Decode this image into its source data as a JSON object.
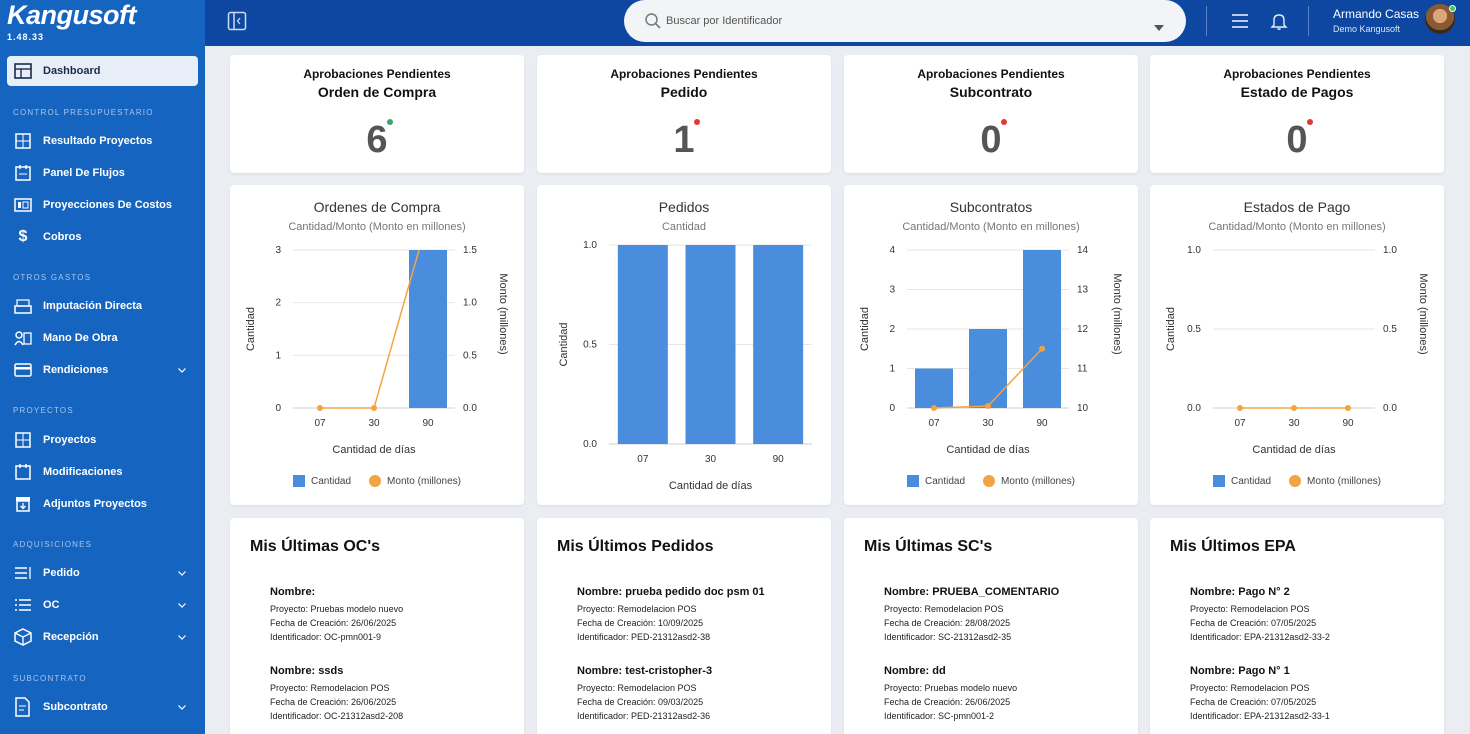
{
  "app": {
    "logo": "Kangusoft",
    "version": "1.48.33"
  },
  "sidebar": {
    "dashboard": "Dashboard",
    "sections": {
      "control": "CONTROL PRESUPUESTARIO",
      "otros": "OTROS GASTOS",
      "proyectos": "PROYECTOS",
      "adquisiciones": "ADQUISICIONES",
      "subcontrato": "SUBCONTRATO"
    },
    "items": {
      "resultado": "Resultado Proyectos",
      "flujos": "Panel De Flujos",
      "proyecciones": "Proyecciones De Costos",
      "cobros": "Cobros",
      "imputacion": "Imputación Directa",
      "mano": "Mano De Obra",
      "rendiciones": "Rendiciones",
      "proyectos": "Proyectos",
      "modificaciones": "Modificaciones",
      "adjuntos": "Adjuntos Proyectos",
      "pedido": "Pedido",
      "oc": "OC",
      "recepcion": "Recepción",
      "subcontrato": "Subcontrato"
    }
  },
  "header": {
    "search_placeholder": "Buscar por Identificador",
    "user_name": "Armando Casas",
    "user_company": "Demo Kangusoft"
  },
  "kpis": [
    {
      "sub": "Aprobaciones Pendientes",
      "title": "Orden de Compra",
      "value": "6",
      "dot": "#3aa56b"
    },
    {
      "sub": "Aprobaciones Pendientes",
      "title": "Pedido",
      "value": "1",
      "dot": "#e03b30"
    },
    {
      "sub": "Aprobaciones Pendientes",
      "title": "Subcontrato",
      "value": "0",
      "dot": "#e03b30"
    },
    {
      "sub": "Aprobaciones Pendientes",
      "title": "Estado de Pagos",
      "value": "0",
      "dot": "#e03b30"
    }
  ],
  "charts": [
    {
      "title": "Ordenes de Compra",
      "subtitle": "Cantidad/Monto (Monto en millones)",
      "xlabel": "Cantidad de días",
      "ylabel": "Cantidad",
      "y2label": "Monto (millones)",
      "legend_bar": "Cantidad",
      "legend_line": "Monto (millones)"
    },
    {
      "title": "Pedidos",
      "subtitle": "Cantidad",
      "xlabel": "Cantidad de días",
      "ylabel": "Cantidad"
    },
    {
      "title": "Subcontratos",
      "subtitle": "Cantidad/Monto (Monto en millones)",
      "xlabel": "Cantidad de días",
      "ylabel": "Cantidad",
      "y2label": "Monto (millones)",
      "legend_bar": "Cantidad",
      "legend_line": "Monto (millones)"
    },
    {
      "title": "Estados de Pago",
      "subtitle": "Cantidad/Monto (Monto en millones)",
      "xlabel": "Cantidad de días",
      "ylabel": "Cantidad",
      "y2label": "Monto (millones)",
      "legend_bar": "Cantidad",
      "legend_line": "Monto (millones)"
    }
  ],
  "chart_data": [
    {
      "type": "bar",
      "title": "Ordenes de Compra",
      "categories": [
        "07",
        "30",
        "90"
      ],
      "series": [
        {
          "name": "Cantidad",
          "type": "bar",
          "values": [
            0,
            0,
            3
          ]
        },
        {
          "name": "Monto (millones)",
          "type": "line",
          "values": [
            0,
            0,
            1.8
          ]
        }
      ],
      "ylim": [
        0,
        3
      ],
      "yticks": [
        "0",
        "1",
        "2",
        "3"
      ],
      "y2lim": [
        0,
        1.5
      ],
      "y2ticks": [
        "0.0",
        "0.5",
        "1.0",
        "1.5"
      ],
      "xlabel": "Cantidad de días",
      "ylabel": "Cantidad",
      "y2label": "Monto (millones)"
    },
    {
      "type": "bar",
      "title": "Pedidos",
      "categories": [
        "07",
        "30",
        "90"
      ],
      "series": [
        {
          "name": "Cantidad",
          "type": "bar",
          "values": [
            1,
            1,
            1
          ]
        }
      ],
      "ylim": [
        0,
        1
      ],
      "yticks": [
        "0.0",
        "0.5",
        "1.0"
      ],
      "xlabel": "Cantidad de días",
      "ylabel": "Cantidad"
    },
    {
      "type": "bar",
      "title": "Subcontratos",
      "categories": [
        "07",
        "30",
        "90"
      ],
      "series": [
        {
          "name": "Cantidad",
          "type": "bar",
          "values": [
            1,
            2,
            4
          ]
        },
        {
          "name": "Monto (millones)",
          "type": "line",
          "values": [
            10,
            10.05,
            11.5
          ]
        }
      ],
      "ylim": [
        0,
        4
      ],
      "yticks": [
        "0",
        "1",
        "2",
        "3",
        "4"
      ],
      "y2lim": [
        10,
        14
      ],
      "y2ticks": [
        "10",
        "11",
        "12",
        "13",
        "14"
      ],
      "xlabel": "Cantidad de días",
      "ylabel": "Cantidad",
      "y2label": "Monto (millones)"
    },
    {
      "type": "bar",
      "title": "Estados de Pago",
      "categories": [
        "07",
        "30",
        "90"
      ],
      "series": [
        {
          "name": "Cantidad",
          "type": "bar",
          "values": [
            0,
            0,
            0
          ]
        },
        {
          "name": "Monto (millones)",
          "type": "line",
          "values": [
            0,
            0,
            0
          ]
        }
      ],
      "ylim": [
        0,
        1
      ],
      "yticks": [
        "0.0",
        "0.5",
        "1.0"
      ],
      "y2lim": [
        0,
        1
      ],
      "y2ticks": [
        "0.0",
        "0.5",
        "1.0"
      ],
      "xlabel": "Cantidad de días",
      "ylabel": "Cantidad",
      "y2label": "Monto (millones)"
    }
  ],
  "lists": [
    {
      "title": "Mis Últimas OC's",
      "entries": [
        {
          "name": "Nombre:",
          "proyecto": "Proyecto: Pruebas modelo nuevo",
          "fecha": "Fecha de Creación: 26/06/2025",
          "id": "Identificador: OC-pmn001-9"
        },
        {
          "name": "Nombre: ssds",
          "proyecto": "Proyecto: Remodelacion POS",
          "fecha": "Fecha de Creación: 26/06/2025",
          "id": "Identificador: OC-21312asd2-208"
        }
      ]
    },
    {
      "title": "Mis Últimos Pedidos",
      "entries": [
        {
          "name": "Nombre: prueba pedido doc psm 01",
          "proyecto": "Proyecto: Remodelacion POS",
          "fecha": "Fecha de Creación: 10/09/2025",
          "id": "Identificador: PED-21312asd2-38"
        },
        {
          "name": "Nombre: test-cristopher-3",
          "proyecto": "Proyecto: Remodelacion POS",
          "fecha": "Fecha de Creación: 09/03/2025",
          "id": "Identificador: PED-21312asd2-36"
        }
      ]
    },
    {
      "title": "Mis Últimas SC's",
      "entries": [
        {
          "name": "Nombre: PRUEBA_COMENTARIO",
          "proyecto": "Proyecto: Remodelacion POS",
          "fecha": "Fecha de Creación: 28/08/2025",
          "id": "Identificador: SC-21312asd2-35"
        },
        {
          "name": "Nombre: dd",
          "proyecto": "Proyecto: Pruebas modelo nuevo",
          "fecha": "Fecha de Creación: 26/06/2025",
          "id": "Identificador: SC-pmn001-2"
        }
      ]
    },
    {
      "title": "Mis Últimos EPA",
      "entries": [
        {
          "name": "Nombre: Pago N° 2",
          "proyecto": "Proyecto: Remodelacion POS",
          "fecha": "Fecha de Creación: 07/05/2025",
          "id": "Identificador: EPA-21312asd2-33-2"
        },
        {
          "name": "Nombre: Pago N° 1",
          "proyecto": "Proyecto: Remodelacion POS",
          "fecha": "Fecha de Creación: 07/05/2025",
          "id": "Identificador: EPA-21312asd2-33-1"
        }
      ]
    }
  ],
  "colors": {
    "bar": "#4a8ddc",
    "line": "#f2a444",
    "sidebar": "#1565c0",
    "header": "#0d47a1"
  }
}
